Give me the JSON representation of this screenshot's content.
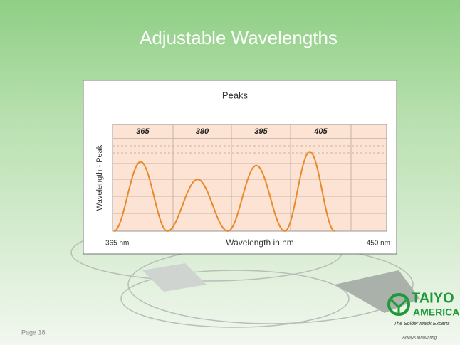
{
  "slide": {
    "title": "Adjustable Wavelengths",
    "page": "Page 18",
    "logo": {
      "name": "TAIYO",
      "sub": "AMERICA",
      "tagline": "The Solder Mask Experts",
      "footer": "Always innovating"
    }
  },
  "chart_data": {
    "type": "line",
    "title": "Peaks",
    "x_label": "Wavelength in nm",
    "y_label": "Wavelength - Peak",
    "categories": [
      "365",
      "380",
      "395",
      "405"
    ],
    "values": [
      7.5,
      5.6,
      7.1,
      8.6
    ],
    "color": "#e8892a",
    "ylim": [
      0,
      10
    ],
    "range_labels": [
      "365 nm",
      "450 nm"
    ]
  }
}
